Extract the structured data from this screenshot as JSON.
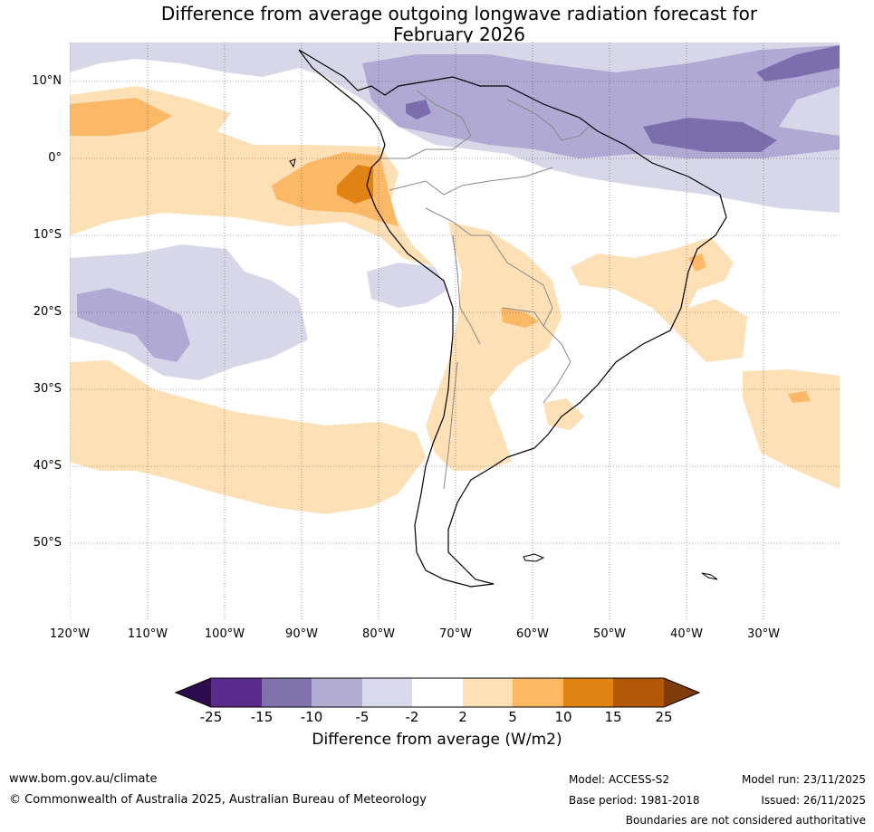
{
  "title": {
    "line1": "Difference from average outgoing longwave radiation forecast for",
    "line2": "February 2026"
  },
  "map": {
    "latitude_labels": [
      "10°N",
      "0°",
      "10°S",
      "20°S",
      "30°S",
      "40°S",
      "50°S"
    ],
    "longitude_labels": [
      "120°W",
      "110°W",
      "100°W",
      "90°W",
      "80°W",
      "70°W",
      "60°W",
      "50°W",
      "40°W",
      "30°W"
    ],
    "region": "South America and surrounding oceans",
    "colors": {
      "strong_negative": "#7c6ead",
      "moderate_negative": "#b0a9d3",
      "weak_negative": "#d8d7ea",
      "neutral": "#ffffff",
      "weak_positive": "#fde0b5",
      "moderate_positive": "#fbb867",
      "strong_positive": "#e08214"
    }
  },
  "colorbar": {
    "ticks": [
      "-25",
      "-15",
      "-10",
      "-5",
      "-2",
      "2",
      "5",
      "10",
      "15",
      "25"
    ],
    "colors": [
      "#2d0b4e",
      "#5a2a8c",
      "#8073ac",
      "#b2abd2",
      "#d8daeb",
      "#ffffff",
      "#fee0b6",
      "#fdb863",
      "#e08214",
      "#b35806",
      "#7f3b08"
    ],
    "label": "Difference from average (W/m2)"
  },
  "footer": {
    "website": "www.bom.gov.au/climate",
    "copyright": "© Commonwealth of Australia 2025, Australian Bureau of Meteorology",
    "model": "Model: ACCESS-S2",
    "base_period": "Base period: 1981-2018",
    "model_run": "Model run: 23/11/2025",
    "issued": "Issued: 26/11/2025",
    "disclaimer": "Boundaries are not considered authoritative"
  }
}
